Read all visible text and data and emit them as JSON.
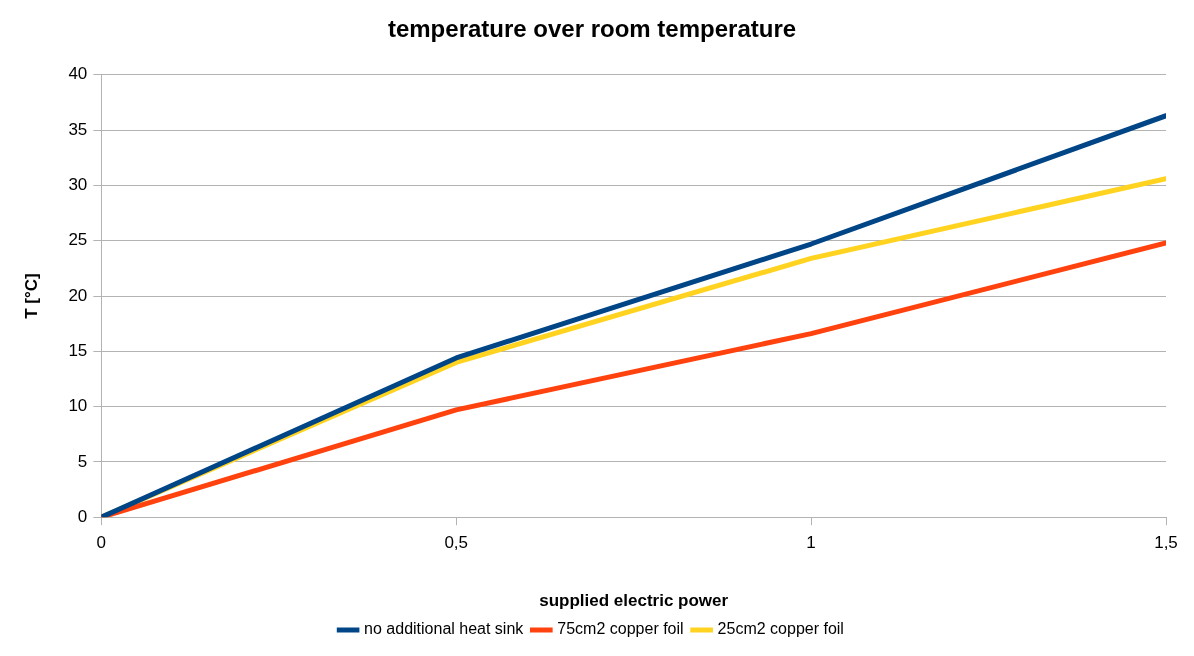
{
  "chart_data": {
    "type": "line",
    "title": "temperature over room temperature",
    "xlabel": "supplied electric power",
    "ylabel": "T [°C]",
    "x": [
      0,
      0.5,
      1,
      1.5
    ],
    "series": [
      {
        "name": "no additional heat sink",
        "color": "#004586",
        "values": [
          0,
          14.4,
          24.7,
          36.3
        ]
      },
      {
        "name": "75cm2 copper foil",
        "color": "#ff420e",
        "values": [
          0,
          9.7,
          16.6,
          24.8
        ]
      },
      {
        "name": "25cm2 copper foil",
        "color": "#ffd320",
        "values": [
          0,
          14.0,
          23.4,
          30.6
        ]
      }
    ],
    "xlim": [
      0,
      1.5
    ],
    "xticks": [
      0,
      {
        "value": 0.5,
        "label": "0,5"
      },
      1,
      {
        "value": 1.5,
        "label": "1,5"
      }
    ],
    "ylim": [
      0,
      40
    ],
    "yticks": [
      0,
      5,
      10,
      15,
      20,
      25,
      30,
      35,
      40
    ],
    "grid": "y",
    "legend": "bottom",
    "marker": "none",
    "line_style": "solid"
  }
}
